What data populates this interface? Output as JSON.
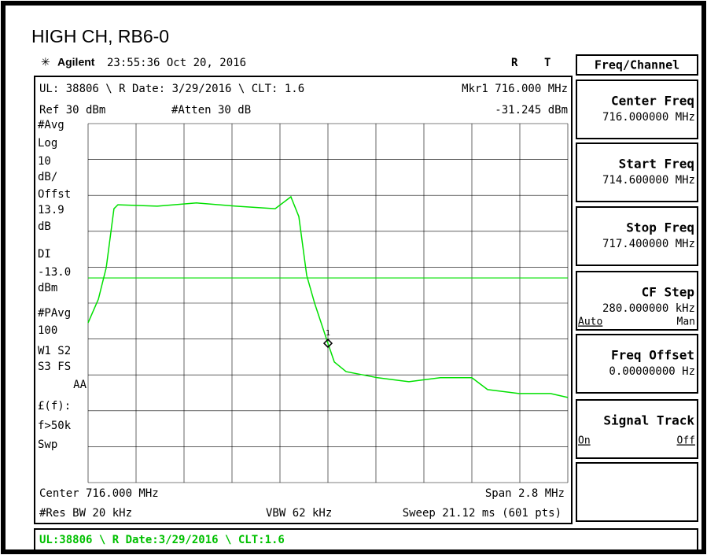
{
  "header": {
    "title": "HIGH CH, RB6-0",
    "brand": "Agilent",
    "timestamp": "23:55:36  Oct 20, 2016",
    "flags": [
      "R",
      "T"
    ]
  },
  "display": {
    "top_left": "UL: 38806 \\ R Date: 3/29/2016 \\ CLT: 1.6",
    "marker_label": "Mkr1  716.000 MHz",
    "ref": "Ref 30 dBm",
    "atten": "#Atten 30 dB",
    "marker_value": "-31.245 dBm",
    "marker_id": "1",
    "side_labels": [
      "#Avg",
      "Log",
      "10",
      "dB/",
      "Offst",
      "13.9",
      "dB",
      "DI",
      "-13.0",
      "dBm",
      "#PAvg",
      "100",
      "W1  S2",
      "S3  FS",
      "AA",
      "£(f):",
      "f>50k",
      "Swp"
    ],
    "center": "Center 716.000 MHz",
    "span": "Span 2.8 MHz",
    "rbw": "#Res BW 20 kHz",
    "vbw": "VBW 62 kHz",
    "sweep": "Sweep 21.12 ms (601 pts)"
  },
  "chart_data": {
    "type": "line",
    "color": "#00e000",
    "x": [
      714.6,
      714.66,
      714.706,
      714.751,
      714.774,
      715.004,
      715.233,
      715.463,
      715.692,
      715.784,
      715.83,
      715.876,
      715.922,
      716.0,
      716.037,
      716.106,
      716.289,
      716.473,
      716.656,
      716.84,
      716.932,
      717.115,
      717.299,
      717.4
    ],
    "values": [
      -25.5,
      -18.9,
      -10.1,
      6.3,
      7.4,
      7.0,
      7.9,
      7.0,
      6.3,
      9.6,
      4.1,
      -12.3,
      -20,
      -31.2,
      -36.4,
      -39.1,
      -40.8,
      -41.9,
      -40.8,
      -40.8,
      -44.1,
      -45.2,
      -45.2,
      -46.3
    ],
    "xlim": [
      714.6,
      717.4
    ],
    "ylim": [
      -70,
      30
    ],
    "display_line": -13,
    "marker_index": 13
  },
  "menu": {
    "title": "Freq/Channel",
    "keys": [
      {
        "label": "Center Freq",
        "value": "716.000000 MHz"
      },
      {
        "label": "Start Freq",
        "value": "714.600000 MHz"
      },
      {
        "label": "Stop Freq",
        "value": "717.400000 MHz"
      },
      {
        "label": "CF Step",
        "value": "280.000000 kHz",
        "options": [
          "Auto",
          "Man"
        ]
      },
      {
        "label": "Freq Offset",
        "value": "0.00000000  Hz"
      },
      {
        "label": "Signal Track",
        "options": [
          "On",
          "Off"
        ]
      }
    ]
  },
  "status": "UL:38806 \\ R Date:3/29/2016 \\ CLT:1.6"
}
